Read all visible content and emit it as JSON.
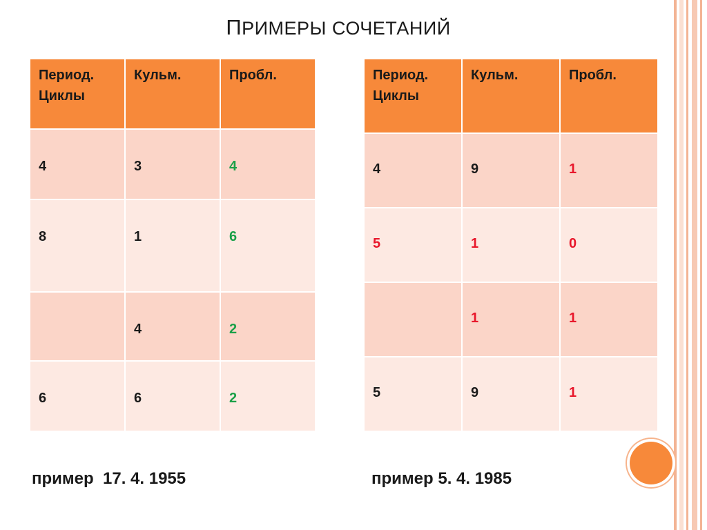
{
  "slide": {
    "title_first": "П",
    "title_rest": "РИМЕРЫ СОЧЕТАНИЙ"
  },
  "colors": {
    "accent": "#f7893a",
    "row_light": "#fde9e2",
    "row_dark": "#fbd5c8",
    "green": "#1aa048",
    "red": "#e8172b"
  },
  "left_table": {
    "headers": [
      "Период.\nЦиклы",
      "Кульм.",
      "Пробл."
    ],
    "rows": [
      [
        {
          "v": "4"
        },
        {
          "v": "3"
        },
        {
          "v": "4",
          "c": "green"
        }
      ],
      [
        {
          "v": "8"
        },
        {
          "v": "1"
        },
        {
          "v": "6",
          "c": "green"
        }
      ],
      [
        {
          "v": ""
        },
        {
          "v": "4"
        },
        {
          "v": "2",
          "c": "green"
        }
      ],
      [
        {
          "v": "6"
        },
        {
          "v": "6"
        },
        {
          "v": "2",
          "c": "green"
        }
      ]
    ],
    "caption": "пример  17. 4. 1955"
  },
  "right_table": {
    "headers": [
      "Период.\nЦиклы",
      "Кульм.",
      "Пробл."
    ],
    "rows": [
      [
        {
          "v": "4"
        },
        {
          "v": "9"
        },
        {
          "v": "1",
          "c": "red"
        }
      ],
      [
        {
          "v": "5",
          "c": "red"
        },
        {
          "v": "1",
          "c": "red"
        },
        {
          "v": "0",
          "c": "red"
        }
      ],
      [
        {
          "v": ""
        },
        {
          "v": "1",
          "c": "red"
        },
        {
          "v": "1",
          "c": "red"
        }
      ],
      [
        {
          "v": "5"
        },
        {
          "v": "9"
        },
        {
          "v": "1",
          "c": "red"
        }
      ]
    ],
    "caption": "пример 5. 4. 1985"
  }
}
